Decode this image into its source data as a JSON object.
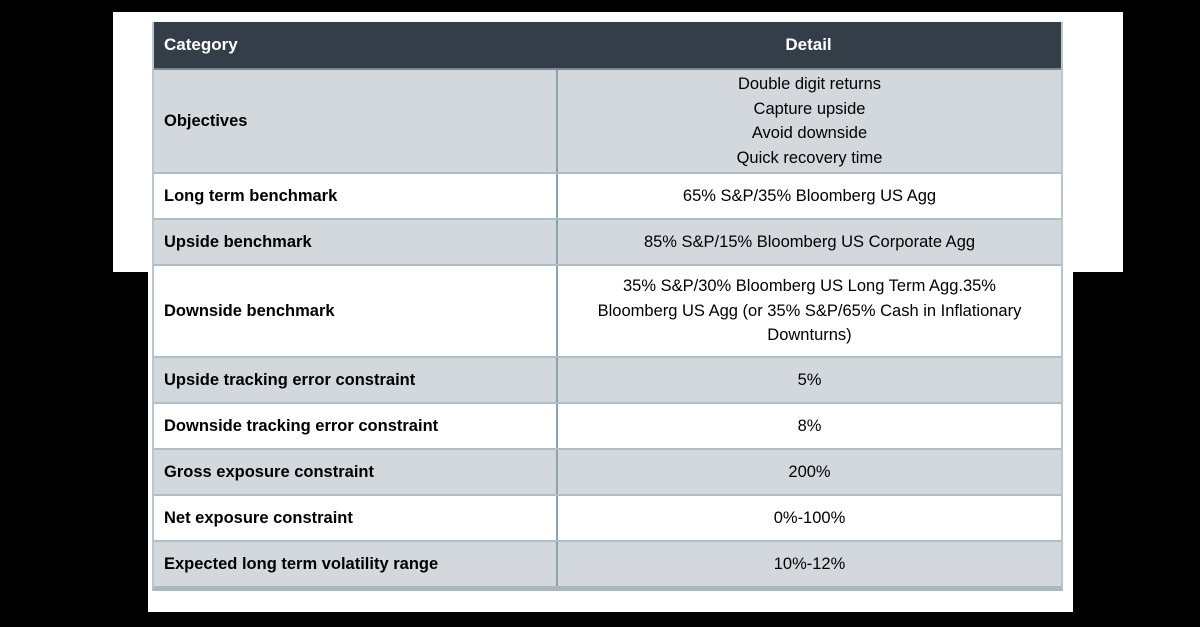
{
  "colors": {
    "page_background": "#000000",
    "slide_background": "#ffffff",
    "header_background": "#333e49",
    "header_text": "#ffffff",
    "shaded_row_background": "#d3d8dd",
    "row_divider": "#8da3b1"
  },
  "table": {
    "header": {
      "category": "Category",
      "detail": "Detail"
    },
    "rows": [
      {
        "category": "Objectives",
        "detail": "Double digit returns\nCapture upside\nAvoid downside\nQuick recovery time"
      },
      {
        "category": "Long term benchmark",
        "detail": "65% S&P/35% Bloomberg US Agg"
      },
      {
        "category": "Upside benchmark",
        "detail": "85% S&P/15% Bloomberg US Corporate Agg"
      },
      {
        "category": "Downside benchmark",
        "detail": "35% S&P/30% Bloomberg US Long Term Agg.35%\nBloomberg US Agg (or 35% S&P/65% Cash in Inflationary\nDownturns)"
      },
      {
        "category": "Upside tracking error constraint",
        "detail": "5%"
      },
      {
        "category": "Downside tracking error constraint",
        "detail": "8%"
      },
      {
        "category": "Gross exposure constraint",
        "detail": "200%"
      },
      {
        "category": "Net exposure constraint",
        "detail": "0%-100%"
      },
      {
        "category": "Expected long term volatility range",
        "detail": "10%-12%"
      }
    ]
  }
}
